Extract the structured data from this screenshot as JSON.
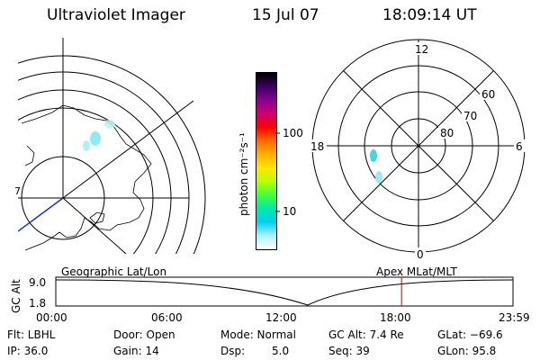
{
  "header": {
    "title": "Ultraviolet Imager",
    "date": "15 Jul 07",
    "time": "18:09:14 UT"
  },
  "geo_panel": {
    "edge_label": "7",
    "caption": "Geographic Lat/Lon"
  },
  "colorbar": {
    "unit_label": "photon cm⁻²s⁻¹",
    "ticks": [
      "100",
      "10"
    ],
    "colors": [
      "#000000",
      "#3a0060",
      "#8a0095",
      "#d00070",
      "#ff0000",
      "#ff6a00",
      "#ffb000",
      "#ffe800",
      "#b8ff00",
      "#40ff40",
      "#00e8b0",
      "#00d0f0",
      "#b0f0ff",
      "#ffffff"
    ]
  },
  "polar_panel": {
    "mlt_labels": {
      "top": "12",
      "left": "18",
      "right": "6",
      "bottom": "0"
    },
    "lat_labels": [
      "60",
      "70",
      "80"
    ],
    "caption": "Apex MLat/MLT"
  },
  "timeline": {
    "ylabel": "GC Alt",
    "ytick_top": "9.0",
    "ytick_bottom": "1.8",
    "xticks": [
      "00:00",
      "06:00",
      "12:00",
      "18:00",
      "23:59"
    ],
    "current_time_hours": 18.15,
    "marker_color": "#c00000"
  },
  "info": {
    "flt": "Flt: LBHL",
    "ip": "IP: 36.0",
    "door": "Door: Open",
    "gain": "Gain: 14",
    "mode": "Mode: Normal",
    "dsp_label": "Dsp:",
    "dsp_value": "5.0",
    "gcalt": "GC Alt: 7.4 Re",
    "seq": "Seq: 39",
    "glat": "GLat: −69.6",
    "glon": "GLon:  95.8"
  }
}
